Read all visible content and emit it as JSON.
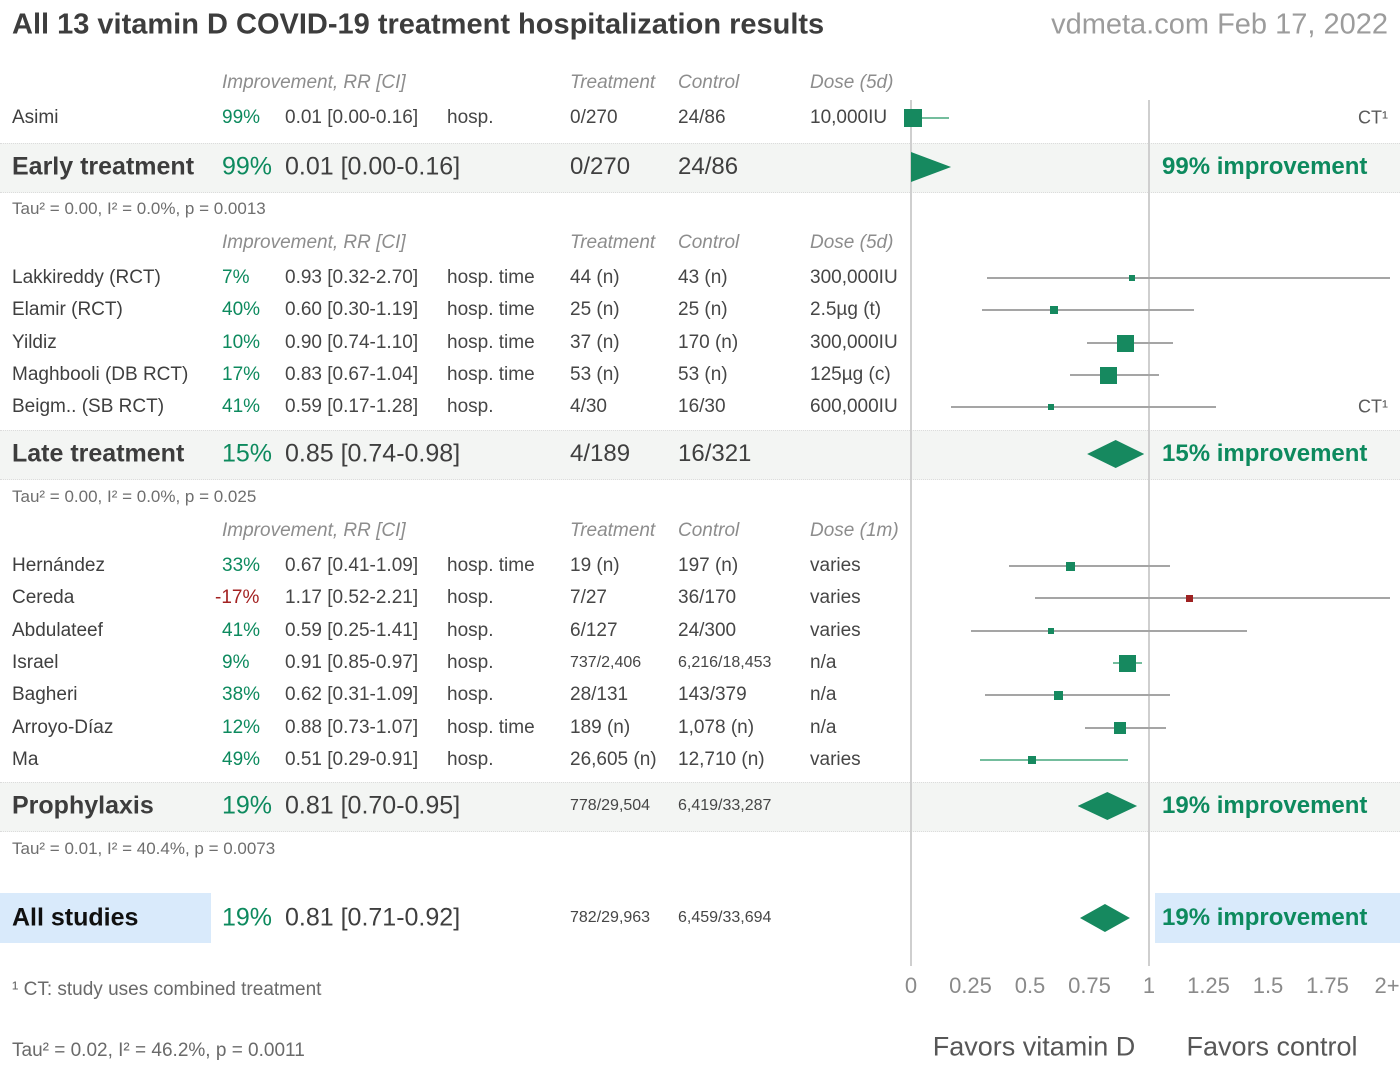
{
  "title": "All 13 vitamin D COVID-19 treatment hospitalization results",
  "brand": "vdmeta.com Feb 17, 2022",
  "footnote": "¹ CT: study uses combined treatment",
  "overall_tau": "Tau² = 0.02, I² = 46.2%, p = 0.0011",
  "ct_flag_label": "CT¹",
  "axis_footer": {
    "favors_left": "Favors vitamin D",
    "favors_right": "Favors control"
  },
  "colors": {
    "green_text": "#0d8a5e",
    "red_text": "#a32222",
    "marker_green": "#16895f",
    "marker_red": "#9e2121",
    "ci_green": "#74bd9d",
    "ci_gray": "#a5a5a5",
    "band_bg": "#f3f5f3",
    "highlight_blue": "#d9eafb",
    "grid_gray": "#cfcfcf"
  },
  "chart_data": {
    "type": "scatter",
    "variant": "forest-plot",
    "x_axis": {
      "label_ticks": [
        "0",
        "0.25",
        "0.5",
        "0.75",
        "1",
        "1.25",
        "1.5",
        "1.75",
        "2+"
      ],
      "tick_values": [
        0,
        0.25,
        0.5,
        0.75,
        1,
        1.25,
        1.5,
        1.75,
        2
      ],
      "range": [
        0,
        2
      ],
      "reference_lines": [
        0,
        1
      ]
    },
    "groups": [
      {
        "header": {
          "improvement": "Improvement, RR [CI]",
          "treatment": "Treatment",
          "control": "Control",
          "dose": "Dose (5d)"
        },
        "studies": [
          {
            "name": "Asimi",
            "pct": "99%",
            "rr_ci": "0.01 [0.00-0.16]",
            "outcome": "hosp.",
            "treatment": "0/270",
            "control": "24/86",
            "dose": "10,000IU",
            "ct": true,
            "rr": 0.01,
            "lo": 0.0,
            "hi": 0.16,
            "w": 18,
            "small": false
          }
        ],
        "summary": {
          "label": "Early treatment",
          "pct": "99%",
          "rr_ci": "0.01 [0.00-0.16]",
          "treatment": "0/270",
          "control": "24/86",
          "improvement": "99% improvement",
          "rr": 0.01,
          "lo": 0.0,
          "hi": 0.16,
          "shape": "triangle",
          "small_nums": false
        },
        "tau": "Tau² = 0.00, I² = 0.0%, p = 0.0013"
      },
      {
        "header": {
          "improvement": "Improvement, RR [CI]",
          "treatment": "Treatment",
          "control": "Control",
          "dose": "Dose (5d)"
        },
        "studies": [
          {
            "name": "Lakkireddy (RCT)",
            "pct": "7%",
            "rr_ci": "0.93 [0.32-2.70]",
            "outcome": "hosp. time",
            "treatment": "44 (n)",
            "control": "43 (n)",
            "dose": "300,000IU",
            "ct": false,
            "rr": 0.93,
            "lo": 0.32,
            "hi": 2.7,
            "w": 6,
            "small": false
          },
          {
            "name": "Elamir (RCT)",
            "pct": "40%",
            "rr_ci": "0.60 [0.30-1.19]",
            "outcome": "hosp. time",
            "treatment": "25 (n)",
            "control": "25 (n)",
            "dose": "2.5µg (t)",
            "ct": false,
            "rr": 0.6,
            "lo": 0.3,
            "hi": 1.19,
            "w": 8,
            "small": false
          },
          {
            "name": "Yildiz",
            "pct": "10%",
            "rr_ci": "0.90 [0.74-1.10]",
            "outcome": "hosp. time",
            "treatment": "37 (n)",
            "control": "170 (n)",
            "dose": "300,000IU",
            "ct": false,
            "rr": 0.9,
            "lo": 0.74,
            "hi": 1.1,
            "w": 17,
            "small": false
          },
          {
            "name": "Maghbooli (DB RCT)",
            "pct": "17%",
            "rr_ci": "0.83 [0.67-1.04]",
            "outcome": "hosp. time",
            "treatment": "53 (n)",
            "control": "53 (n)",
            "dose": "125µg (c)",
            "ct": false,
            "rr": 0.83,
            "lo": 0.67,
            "hi": 1.04,
            "w": 17,
            "small": false
          },
          {
            "name": "Beigm.. (SB RCT)",
            "pct": "41%",
            "rr_ci": "0.59 [0.17-1.28]",
            "outcome": "hosp.",
            "treatment": "4/30",
            "control": "16/30",
            "dose": "600,000IU",
            "ct": true,
            "rr": 0.59,
            "lo": 0.17,
            "hi": 1.28,
            "w": 6,
            "small": false
          }
        ],
        "summary": {
          "label": "Late treatment",
          "pct": "15%",
          "rr_ci": "0.85 [0.74-0.98]",
          "treatment": "4/189",
          "control": "16/321",
          "improvement": "15% improvement",
          "rr": 0.85,
          "lo": 0.74,
          "hi": 0.98,
          "shape": "diamond",
          "small_nums": false
        },
        "tau": "Tau² = 0.00, I² = 0.0%, p = 0.025"
      },
      {
        "header": {
          "improvement": "Improvement, RR [CI]",
          "treatment": "Treatment",
          "control": "Control",
          "dose": "Dose (1m)"
        },
        "studies": [
          {
            "name": "Hernández",
            "pct": "33%",
            "rr_ci": "0.67 [0.41-1.09]",
            "outcome": "hosp. time",
            "treatment": "19 (n)",
            "control": "197 (n)",
            "dose": "varies",
            "ct": false,
            "rr": 0.67,
            "lo": 0.41,
            "hi": 1.09,
            "w": 9,
            "small": false
          },
          {
            "name": "Cereda",
            "pct": "-17%",
            "rr_ci": "1.17 [0.52-2.21]",
            "outcome": "hosp.",
            "treatment": "7/27",
            "control": "36/170",
            "dose": "varies",
            "ct": false,
            "rr": 1.17,
            "lo": 0.52,
            "hi": 2.21,
            "w": 7,
            "small": false
          },
          {
            "name": "Abdulateef",
            "pct": "41%",
            "rr_ci": "0.59 [0.25-1.41]",
            "outcome": "hosp.",
            "treatment": "6/127",
            "control": "24/300",
            "dose": "varies",
            "ct": false,
            "rr": 0.59,
            "lo": 0.25,
            "hi": 1.41,
            "w": 6,
            "small": false
          },
          {
            "name": "Israel",
            "pct": "9%",
            "rr_ci": "0.91 [0.85-0.97]",
            "outcome": "hosp.",
            "treatment": "737/2,406",
            "control": "6,216/18,453",
            "dose": "n/a",
            "ct": false,
            "rr": 0.91,
            "lo": 0.85,
            "hi": 0.97,
            "w": 17,
            "small": true
          },
          {
            "name": "Bagheri",
            "pct": "38%",
            "rr_ci": "0.62 [0.31-1.09]",
            "outcome": "hosp.",
            "treatment": "28/131",
            "control": "143/379",
            "dose": "n/a",
            "ct": false,
            "rr": 0.62,
            "lo": 0.31,
            "hi": 1.09,
            "w": 9,
            "small": false
          },
          {
            "name": "Arroyo-Díaz",
            "pct": "12%",
            "rr_ci": "0.88 [0.73-1.07]",
            "outcome": "hosp. time",
            "treatment": "189 (n)",
            "control": "1,078 (n)",
            "dose": "n/a",
            "ct": false,
            "rr": 0.88,
            "lo": 0.73,
            "hi": 1.07,
            "w": 12,
            "small": false
          },
          {
            "name": "Ma",
            "pct": "49%",
            "rr_ci": "0.51 [0.29-0.91]",
            "outcome": "hosp.",
            "treatment": "26,605 (n)",
            "control": "12,710 (n)",
            "dose": "varies",
            "ct": false,
            "rr": 0.51,
            "lo": 0.29,
            "hi": 0.91,
            "w": 8,
            "small": false
          }
        ],
        "summary": {
          "label": "Prophylaxis",
          "pct": "19%",
          "rr_ci": "0.81 [0.70-0.95]",
          "treatment": "778/29,504",
          "control": "6,419/33,287",
          "improvement": "19% improvement",
          "rr": 0.81,
          "lo": 0.7,
          "hi": 0.95,
          "shape": "diamond",
          "small_nums": true
        },
        "tau": "Tau² = 0.01, I² = 40.4%, p = 0.0073"
      }
    ],
    "all_studies": {
      "label": "All studies",
      "pct": "19%",
      "rr_ci": "0.81 [0.71-0.92]",
      "treatment": "782/29,963",
      "control": "6,459/33,694",
      "improvement": "19% improvement",
      "rr": 0.81,
      "lo": 0.71,
      "hi": 0.92,
      "shape": "diamond",
      "small_nums": true
    }
  }
}
